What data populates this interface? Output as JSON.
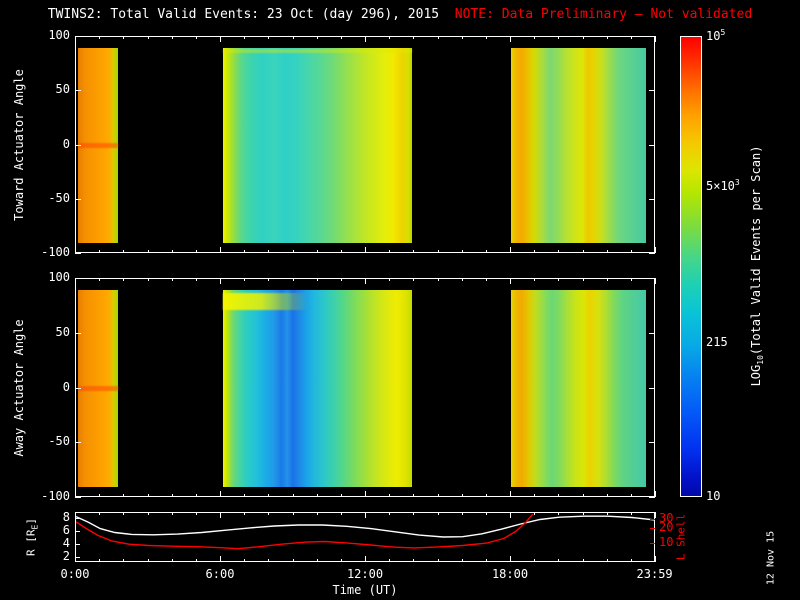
{
  "title": {
    "main": "TWINS2: Total Valid Events: 23 Oct (day 296), 2015",
    "note": "NOTE: Data Preliminary — Not validated"
  },
  "date_stamp": "12 Nov 15",
  "colors": {
    "background": "#000000",
    "axis": "#ffffff",
    "note": "#ff0000",
    "r_line": "#ffffff",
    "lshell_line": "#ff0000"
  },
  "time_axis": {
    "label": "Time (UT)",
    "range_hours": [
      0,
      24
    ],
    "major_ticks": [
      {
        "hour": 0,
        "label": "0:00"
      },
      {
        "hour": 6,
        "label": "6:00"
      },
      {
        "hour": 12,
        "label": "12:00"
      },
      {
        "hour": 18,
        "label": "18:00"
      },
      {
        "hour": 23.983,
        "label": "23:59"
      }
    ],
    "minor_tick_every_hours": 1
  },
  "panels": {
    "toward": {
      "ylabel": "Toward Actuator Angle",
      "yticks": [
        100,
        50,
        0,
        -50,
        -100
      ],
      "ylim": [
        -100,
        100
      ]
    },
    "away": {
      "ylabel": "Away Actuator Angle",
      "yticks": [
        100,
        50,
        0,
        -50,
        -100
      ],
      "ylim": [
        -100,
        100
      ]
    },
    "orbit": {
      "left_label": {
        "pre": "R [R",
        "sub": "E",
        "post": "]"
      },
      "left_ticks": [
        8,
        6,
        4,
        2
      ],
      "left_range": [
        1.2,
        8.9
      ],
      "right_label": "L Shell",
      "right_ticks": [
        30,
        20,
        10
      ],
      "right_range_log": [
        4.2,
        42
      ]
    }
  },
  "colorbar": {
    "label": {
      "pre": "LOG",
      "sub": "10",
      "post": "(Total Valid Events per Scan)"
    },
    "scale": "log",
    "range": [
      10,
      100000
    ],
    "ticks": [
      {
        "base": "10",
        "sup": "5",
        "frac_from_top": 0.0
      },
      {
        "base": "5×10",
        "sup": "3",
        "frac_from_top": 0.325
      },
      {
        "base": "215",
        "sup": "",
        "frac_from_top": 0.667
      },
      {
        "base": "10",
        "sup": "",
        "frac_from_top": 1.0
      }
    ],
    "gradient_top_to_bottom": [
      "#ff0000 0%",
      "#ff2e00 5%",
      "#ff6a00 11%",
      "#ffa000 17%",
      "#f5c800 23%",
      "#dce600 29%",
      "#b4e600 34%",
      "#7edc3c 41%",
      "#46d688 48%",
      "#1ed0b4 54%",
      "#0ac4d6 60%",
      "#08aae6 67%",
      "#0682f0 74%",
      "#0458f8 82%",
      "#0230f0 90%",
      "#0212c8 96%",
      "#0208a8 100%"
    ]
  },
  "chart_data": [
    {
      "type": "heatmap",
      "panel": "toward",
      "title": "Toward Actuator Angle vs Time (UT), color = LOG10 Total Valid Events per Scan",
      "ylim": [
        -100,
        100
      ],
      "angle_extent": [
        -90,
        90
      ],
      "blocks": [
        {
          "t_start": 0.1,
          "t_end": 1.75,
          "stops": [
            "#e67e00 0%",
            "#f59000 18%",
            "#fb9b00 45%",
            "#ffa500 68%",
            "#f7b100 80%",
            "#ddc800 88%",
            "#b8d600 95%",
            "#9cd800 100%"
          ]
        },
        {
          "t_start": 6.08,
          "t_end": 13.92,
          "stops": [
            "#f4f000 0%",
            "#d0ea00 2%",
            "#8edc4a 6%",
            "#55d88e 10%",
            "#3cd4ae 15%",
            "#30d0c2 21%",
            "#3ad4bc 27%",
            "#2ed0c6 33%",
            "#36d2c0 39%",
            "#46d6ac 45%",
            "#56d896 51%",
            "#6cda7c 57%",
            "#88de5c 63%",
            "#a4e240 69%",
            "#c0e626 75%",
            "#d6ea14 81%",
            "#e6ee0a 86%",
            "#f0ea00 90%",
            "#f2da00 93%",
            "#ead400 95%",
            "#d8e000 98%",
            "#b4d800 100%"
          ]
        },
        {
          "t_start": 18.0,
          "t_end": 23.58,
          "stops": [
            "#e6d600 0%",
            "#f0b400 4%",
            "#f6a800 8%",
            "#e6c400 13%",
            "#d6da00 17%",
            "#aadc3e 23%",
            "#7cd872 29%",
            "#92dc56 35%",
            "#b6e032 41%",
            "#cee41a 47%",
            "#dee606 53%",
            "#eec800 57%",
            "#e6d400 61%",
            "#c8e01e 67%",
            "#9adc4e 73%",
            "#72d87a 79%",
            "#62d48a 85%",
            "#58d092 91%",
            "#50cc9a 96%",
            "#44c8a2 100%"
          ]
        }
      ],
      "features": [
        {
          "kind": "hline",
          "t_start": 0.1,
          "t_end": 1.75,
          "angle": 0,
          "half_width_deg": 2.5,
          "color": "rgba(255,70,0,0.55)"
        },
        {
          "kind": "hline",
          "t_start": 6.08,
          "t_end": 13.92,
          "angle": 87,
          "half_width_deg": 2.0,
          "color": "rgba(220,235,0,0.45)"
        }
      ]
    },
    {
      "type": "heatmap",
      "panel": "away",
      "title": "Away Actuator Angle vs Time (UT), color = LOG10 Total Valid Events per Scan",
      "ylim": [
        -100,
        100
      ],
      "angle_extent": [
        -90,
        90
      ],
      "blocks": [
        {
          "t_start": 0.1,
          "t_end": 1.75,
          "stops": [
            "#e67e00 0%",
            "#f59000 18%",
            "#fb9b00 45%",
            "#ffa500 68%",
            "#f7b100 80%",
            "#ddc800 88%",
            "#b8d600 95%",
            "#9cd800 100%"
          ]
        },
        {
          "t_start": 6.08,
          "t_end": 13.92,
          "stops": [
            "#f4f000 0%",
            "#c4e800 2%",
            "#74d86c 5%",
            "#44d4a4 9%",
            "#2accc6 13%",
            "#22c0da 18%",
            "#1aaae8 23%",
            "#2299e8 27%",
            "#1a7ae8 31%",
            "#2292e8 34%",
            "#1a72e8 37%",
            "#1e86e8 40%",
            "#1aa2e8 44%",
            "#22b6de 48%",
            "#2ac6cc 53%",
            "#3ad0ae 58%",
            "#52d68c 63%",
            "#72da66 68%",
            "#92de48 73%",
            "#b2e22e 78%",
            "#cee61a 83%",
            "#e2ea0a 88%",
            "#eeec02 92%",
            "#e2e400 96%",
            "#c2dc00 100%"
          ]
        },
        {
          "t_start": 18.0,
          "t_end": 23.58,
          "stops": [
            "#e2d800 0%",
            "#eeb600 4%",
            "#f2aa00 8%",
            "#e2c800 13%",
            "#c2dc1e 18%",
            "#92dc4e 24%",
            "#6ad876 30%",
            "#82da5e 36%",
            "#aae036 42%",
            "#cae416 48%",
            "#dae606 54%",
            "#ead200 58%",
            "#dae00e 64%",
            "#b2de2e 70%",
            "#82da5a 76%",
            "#62d482 82%",
            "#56d08e 88%",
            "#4ecc9e 94%",
            "#42c8a6 100%"
          ]
        }
      ],
      "features": [
        {
          "kind": "hline",
          "t_start": 0.1,
          "t_end": 1.75,
          "angle": 0,
          "half_width_deg": 2.5,
          "color": "rgba(255,70,0,0.55)"
        },
        {
          "kind": "band",
          "t_start": 6.1,
          "t_end": 9.6,
          "angle_top": 87,
          "angle_bottom": 72,
          "gradient": "linear-gradient(90deg, rgba(244,244,0,0.95) 0%, rgba(236,240,0,0.85) 45%, rgba(190,225,0,0.45) 75%, rgba(150,215,60,0) 100%)"
        }
      ]
    },
    {
      "type": "line",
      "panel": "orbit",
      "title": "Spacecraft radial distance and L Shell vs Time (UT)",
      "xlim_hours": [
        0,
        24
      ],
      "series": [
        {
          "name": "R [RE]",
          "axis": "left",
          "color": "#ffffff",
          "points": [
            [
              0,
              8.35
            ],
            [
              0.5,
              7.5
            ],
            [
              1.0,
              6.5
            ],
            [
              1.6,
              5.9
            ],
            [
              2.3,
              5.6
            ],
            [
              3.2,
              5.55
            ],
            [
              4.2,
              5.65
            ],
            [
              5.2,
              5.9
            ],
            [
              6.2,
              6.25
            ],
            [
              7.2,
              6.6
            ],
            [
              8.2,
              6.9
            ],
            [
              9.2,
              7.05
            ],
            [
              10.2,
              7.05
            ],
            [
              11.2,
              6.85
            ],
            [
              12.2,
              6.5
            ],
            [
              13.2,
              6.0
            ],
            [
              14.2,
              5.5
            ],
            [
              15.2,
              5.2
            ],
            [
              16.0,
              5.25
            ],
            [
              16.8,
              5.7
            ],
            [
              17.6,
              6.4
            ],
            [
              18.4,
              7.2
            ],
            [
              19.2,
              7.9
            ],
            [
              20.0,
              8.25
            ],
            [
              21.0,
              8.4
            ],
            [
              22.0,
              8.4
            ],
            [
              23.0,
              8.2
            ],
            [
              24,
              7.8
            ]
          ]
        },
        {
          "name": "L Shell",
          "axis": "right",
          "color": "#ff0000",
          "points": [
            [
              0,
              28
            ],
            [
              0.4,
              21
            ],
            [
              0.9,
              15
            ],
            [
              1.5,
              11.5
            ],
            [
              2.2,
              10
            ],
            [
              3.0,
              9.4
            ],
            [
              4.0,
              9.1
            ],
            [
              5.0,
              8.9
            ],
            [
              6.0,
              8.5
            ],
            [
              6.7,
              8.1
            ],
            [
              7.5,
              8.8
            ],
            [
              8.5,
              10
            ],
            [
              9.5,
              11
            ],
            [
              10.3,
              11.3
            ],
            [
              11.2,
              10.6
            ],
            [
              12.2,
              9.6
            ],
            [
              13.2,
              8.7
            ],
            [
              14.0,
              8.4
            ],
            [
              15.0,
              8.8
            ],
            [
              16.0,
              9.4
            ],
            [
              17.0,
              10.5
            ],
            [
              17.7,
              13
            ],
            [
              18.2,
              18
            ],
            [
              18.6,
              27
            ],
            [
              18.9,
              40
            ]
          ]
        }
      ]
    }
  ]
}
